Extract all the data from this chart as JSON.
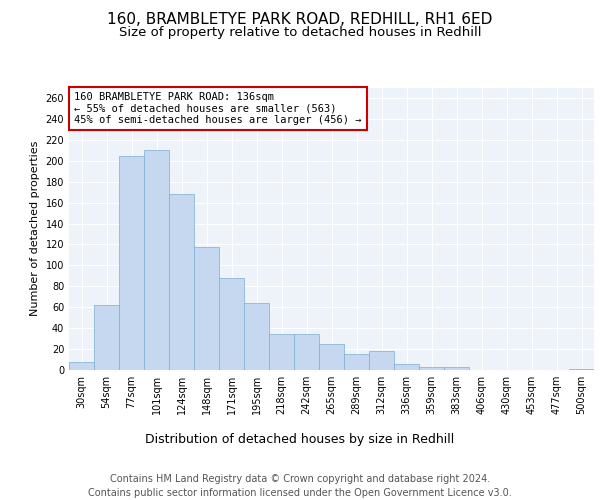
{
  "title1": "160, BRAMBLETYE PARK ROAD, REDHILL, RH1 6ED",
  "title2": "Size of property relative to detached houses in Redhill",
  "xlabel": "Distribution of detached houses by size in Redhill",
  "ylabel": "Number of detached properties",
  "categories": [
    "30sqm",
    "54sqm",
    "77sqm",
    "101sqm",
    "124sqm",
    "148sqm",
    "171sqm",
    "195sqm",
    "218sqm",
    "242sqm",
    "265sqm",
    "289sqm",
    "312sqm",
    "336sqm",
    "359sqm",
    "383sqm",
    "406sqm",
    "430sqm",
    "453sqm",
    "477sqm",
    "500sqm"
  ],
  "values": [
    8,
    62,
    205,
    210,
    168,
    118,
    88,
    64,
    34,
    34,
    25,
    15,
    18,
    6,
    3,
    3,
    0,
    0,
    0,
    0,
    1
  ],
  "bar_color": "#c5d8f0",
  "bar_edge_color": "#7bafd4",
  "annotation_text": "160 BRAMBLETYE PARK ROAD: 136sqm\n← 55% of detached houses are smaller (563)\n45% of semi-detached houses are larger (456) →",
  "annotation_box_color": "white",
  "annotation_box_edge": "#cc0000",
  "ylim": [
    0,
    270
  ],
  "yticks": [
    0,
    20,
    40,
    60,
    80,
    100,
    120,
    140,
    160,
    180,
    200,
    220,
    240,
    260
  ],
  "footer_text": "Contains HM Land Registry data © Crown copyright and database right 2024.\nContains public sector information licensed under the Open Government Licence v3.0.",
  "background_color": "#eef2f9",
  "grid_color": "white",
  "title1_fontsize": 11,
  "title2_fontsize": 9.5,
  "ylabel_fontsize": 8,
  "xlabel_fontsize": 9,
  "tick_fontsize": 7,
  "annotation_fontsize": 7.5,
  "footer_fontsize": 7
}
